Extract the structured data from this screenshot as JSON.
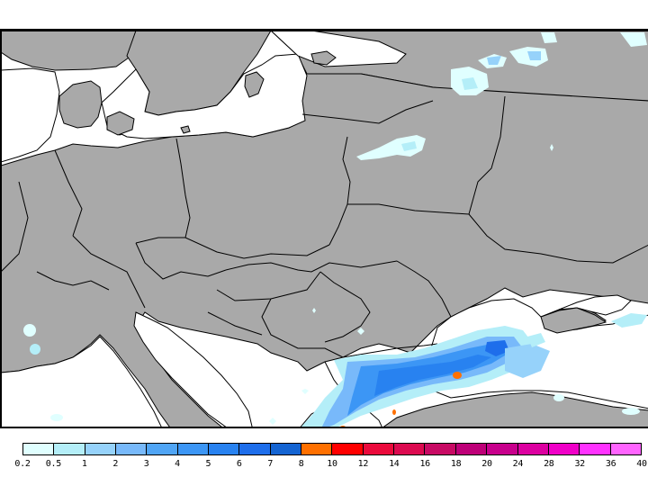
{
  "map": {
    "region": "Central and Eastern Europe",
    "land_color": "#a9a9a9",
    "sea_color": "#ffffff",
    "border_color": "#000000",
    "features": {
      "rain_band": "Black Sea / Bulgaria / Turkey precipitation band",
      "peak_marker_color": "#ff7000"
    }
  },
  "colorbar": {
    "bins": [
      {
        "color": "#e0ffff"
      },
      {
        "color": "#b4eef8"
      },
      {
        "color": "#96d2fa"
      },
      {
        "color": "#78b9fa"
      },
      {
        "color": "#50a5f5"
      },
      {
        "color": "#3c96f5"
      },
      {
        "color": "#2882f0"
      },
      {
        "color": "#1e6eeb"
      },
      {
        "color": "#1464d2"
      },
      {
        "color": "#ff7000"
      },
      {
        "color": "#ff0000"
      },
      {
        "color": "#eb0a3c"
      },
      {
        "color": "#dc0a50"
      },
      {
        "color": "#c80a64"
      },
      {
        "color": "#be0078"
      },
      {
        "color": "#c8008c"
      },
      {
        "color": "#dc00a0"
      },
      {
        "color": "#f000c8"
      },
      {
        "color": "#ff32ff"
      },
      {
        "color": "#ff64ff"
      }
    ],
    "labels": [
      "0.2",
      "0.5",
      "1",
      "2",
      "3",
      "4",
      "5",
      "6",
      "7",
      "8",
      "10",
      "12",
      "14",
      "16",
      "18",
      "20",
      "24",
      "28",
      "32",
      "36",
      "40"
    ]
  }
}
